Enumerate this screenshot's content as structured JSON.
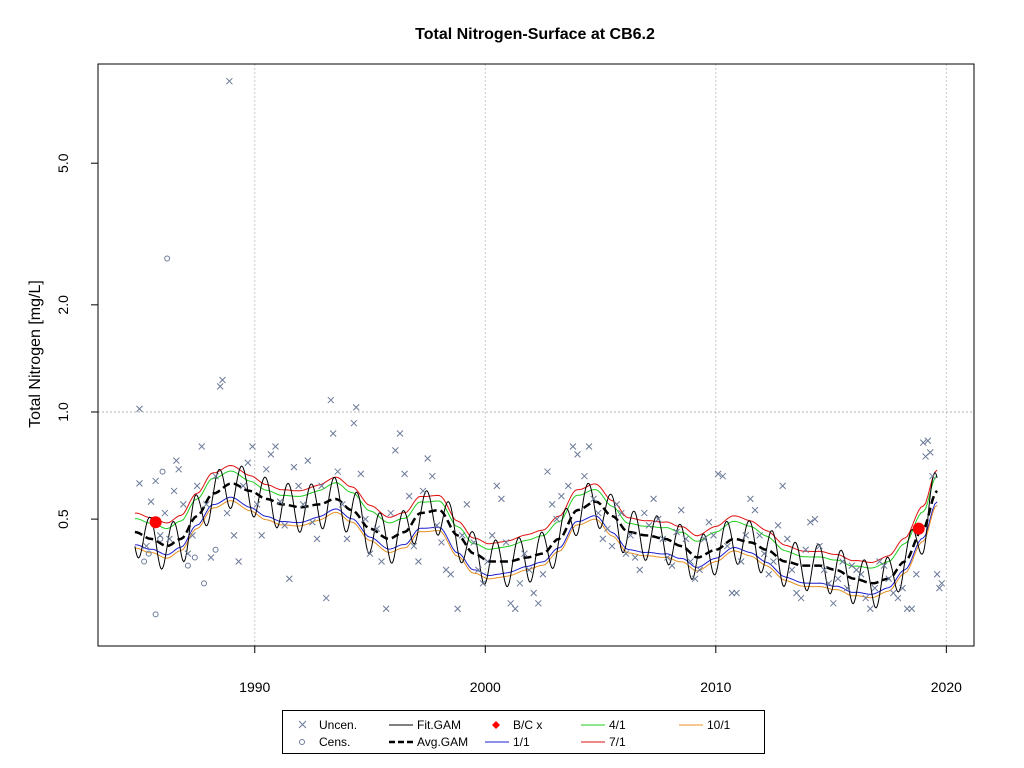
{
  "chart_data": {
    "type": "line",
    "title": "Total Nitrogen-Surface at CB6.2",
    "ylabel": "Total Nitrogen [mg/L]",
    "xlabel": "",
    "y_scale": "log",
    "xlim": [
      1983.2,
      2021.2
    ],
    "ylim": [
      0.22,
      9.5
    ],
    "x_ticks": [
      1990,
      2000,
      2010,
      2020
    ],
    "x_tick_labels": [
      "1990",
      "2000",
      "2010",
      "2020"
    ],
    "y_ticks": [
      0.5,
      1.0,
      2.0,
      5.0
    ],
    "y_tick_labels": [
      "0.5",
      "1.0",
      "2.0",
      "5.0"
    ],
    "grid": true,
    "reference_line_y": 1.0,
    "legend_placement": "bottom-outside",
    "colors": {
      "uncen": "#6b7a99",
      "cens": "#6b7a99",
      "fit": "#000000",
      "avg": "#000000",
      "bc": "#ff0000",
      "jan1": "#1f1fcf",
      "apr1": "#1fcf1f",
      "jul1": "#e01010",
      "oct1": "#e89020"
    },
    "avg_gam": {
      "x": [
        1984.8,
        1985.5,
        1986.2,
        1986.8,
        1987.5,
        1988.2,
        1989.0,
        1989.8,
        1990.5,
        1991.2,
        1992.0,
        1992.8,
        1993.5,
        1994.2,
        1995.0,
        1995.8,
        1996.5,
        1997.2,
        1998.0,
        1998.8,
        1999.5,
        2000.2,
        2001.0,
        2001.8,
        2002.5,
        2003.2,
        2004.0,
        2004.8,
        2005.5,
        2006.2,
        2007.0,
        2007.8,
        2008.5,
        2009.2,
        2010.0,
        2010.8,
        2011.5,
        2012.2,
        2013.0,
        2013.8,
        2014.5,
        2015.2,
        2016.0,
        2016.8,
        2017.5,
        2018.2,
        2019.0,
        2019.6
      ],
      "y": [
        0.46,
        0.44,
        0.42,
        0.44,
        0.51,
        0.59,
        0.63,
        0.6,
        0.57,
        0.55,
        0.54,
        0.55,
        0.57,
        0.53,
        0.47,
        0.44,
        0.46,
        0.52,
        0.53,
        0.45,
        0.4,
        0.38,
        0.38,
        0.39,
        0.4,
        0.44,
        0.53,
        0.56,
        0.51,
        0.46,
        0.45,
        0.44,
        0.42,
        0.39,
        0.41,
        0.44,
        0.43,
        0.41,
        0.38,
        0.37,
        0.37,
        0.36,
        0.34,
        0.33,
        0.34,
        0.38,
        0.47,
        0.6
      ]
    },
    "series": [
      {
        "name": "1/1",
        "offset": 0.92
      },
      {
        "name": "4/1",
        "offset": 1.09
      },
      {
        "name": "7/1",
        "offset": 1.13
      },
      {
        "name": "10/1",
        "offset": 0.9
      }
    ],
    "bc_points": [
      {
        "x": 1985.7,
        "y": 0.49
      },
      {
        "x": 2018.8,
        "y": 0.47
      }
    ],
    "uncen_points": [
      [
        1985.0,
        1.02
      ],
      [
        1985.0,
        0.63
      ],
      [
        1985.3,
        0.42
      ],
      [
        1985.5,
        0.56
      ],
      [
        1985.7,
        0.64
      ],
      [
        1985.9,
        0.45
      ],
      [
        1986.1,
        0.52
      ],
      [
        1986.3,
        0.44
      ],
      [
        1986.5,
        0.6
      ],
      [
        1986.6,
        0.73
      ],
      [
        1986.7,
        0.69
      ],
      [
        1986.9,
        0.55
      ],
      [
        1987.1,
        0.4
      ],
      [
        1987.3,
        0.45
      ],
      [
        1987.5,
        0.62
      ],
      [
        1987.7,
        0.8
      ],
      [
        1987.9,
        0.55
      ],
      [
        1988.1,
        0.39
      ],
      [
        1988.3,
        0.66
      ],
      [
        1988.5,
        1.18
      ],
      [
        1988.6,
        1.23
      ],
      [
        1988.8,
        0.52
      ],
      [
        1988.9,
        8.5
      ],
      [
        1989.1,
        0.45
      ],
      [
        1989.3,
        0.38
      ],
      [
        1989.5,
        0.62
      ],
      [
        1989.7,
        0.72
      ],
      [
        1989.9,
        0.8
      ],
      [
        1990.1,
        0.55
      ],
      [
        1990.3,
        0.45
      ],
      [
        1990.5,
        0.69
      ],
      [
        1990.7,
        0.76
      ],
      [
        1990.9,
        0.8
      ],
      [
        1991.1,
        0.56
      ],
      [
        1991.3,
        0.48
      ],
      [
        1991.5,
        0.34
      ],
      [
        1991.7,
        0.7
      ],
      [
        1991.9,
        0.62
      ],
      [
        1992.1,
        0.55
      ],
      [
        1992.3,
        0.73
      ],
      [
        1992.5,
        0.49
      ],
      [
        1992.7,
        0.44
      ],
      [
        1992.9,
        0.62
      ],
      [
        1993.1,
        0.3
      ],
      [
        1993.3,
        1.08
      ],
      [
        1993.4,
        0.87
      ],
      [
        1993.6,
        0.68
      ],
      [
        1993.8,
        0.55
      ],
      [
        1994.0,
        0.44
      ],
      [
        1994.3,
        0.93
      ],
      [
        1994.4,
        1.03
      ],
      [
        1994.6,
        0.67
      ],
      [
        1994.8,
        0.5
      ],
      [
        1995.0,
        0.4
      ],
      [
        1995.3,
        0.47
      ],
      [
        1995.5,
        0.38
      ],
      [
        1995.7,
        0.28
      ],
      [
        1995.9,
        0.52
      ],
      [
        1996.1,
        0.78
      ],
      [
        1996.3,
        0.87
      ],
      [
        1996.5,
        0.67
      ],
      [
        1996.7,
        0.58
      ],
      [
        1996.9,
        0.42
      ],
      [
        1997.1,
        0.38
      ],
      [
        1997.3,
        0.6
      ],
      [
        1997.5,
        0.74
      ],
      [
        1997.7,
        0.66
      ],
      [
        1997.9,
        0.48
      ],
      [
        1998.1,
        0.43
      ],
      [
        1998.3,
        0.36
      ],
      [
        1998.5,
        0.35
      ],
      [
        1998.8,
        0.28
      ],
      [
        1999.0,
        0.45
      ],
      [
        1999.2,
        0.55
      ],
      [
        1999.5,
        0.43
      ],
      [
        1999.7,
        0.36
      ],
      [
        1999.9,
        0.33
      ],
      [
        2000.1,
        0.38
      ],
      [
        2000.3,
        0.45
      ],
      [
        2000.5,
        0.62
      ],
      [
        2000.7,
        0.57
      ],
      [
        2000.9,
        0.43
      ],
      [
        2001.1,
        0.29
      ],
      [
        2001.3,
        0.28
      ],
      [
        2001.5,
        0.33
      ],
      [
        2001.7,
        0.4
      ],
      [
        2001.9,
        0.36
      ],
      [
        2002.1,
        0.31
      ],
      [
        2002.3,
        0.29
      ],
      [
        2002.5,
        0.35
      ],
      [
        2002.7,
        0.68
      ],
      [
        2002.9,
        0.55
      ],
      [
        2003.1,
        0.5
      ],
      [
        2003.3,
        0.58
      ],
      [
        2003.6,
        0.62
      ],
      [
        2003.8,
        0.8
      ],
      [
        2004.0,
        0.76
      ],
      [
        2004.3,
        0.66
      ],
      [
        2004.5,
        0.8
      ],
      [
        2004.7,
        0.57
      ],
      [
        2004.9,
        0.52
      ],
      [
        2005.1,
        0.44
      ],
      [
        2005.3,
        0.47
      ],
      [
        2005.5,
        0.42
      ],
      [
        2005.7,
        0.55
      ],
      [
        2005.9,
        0.52
      ],
      [
        2006.1,
        0.4
      ],
      [
        2006.3,
        0.45
      ],
      [
        2006.5,
        0.39
      ],
      [
        2006.7,
        0.36
      ],
      [
        2006.9,
        0.52
      ],
      [
        2007.1,
        0.48
      ],
      [
        2007.3,
        0.57
      ],
      [
        2007.5,
        0.5
      ],
      [
        2007.7,
        0.44
      ],
      [
        2007.9,
        0.39
      ],
      [
        2008.1,
        0.37
      ],
      [
        2008.3,
        0.46
      ],
      [
        2008.5,
        0.53
      ],
      [
        2008.7,
        0.44
      ],
      [
        2008.9,
        0.38
      ],
      [
        2009.1,
        0.34
      ],
      [
        2009.3,
        0.36
      ],
      [
        2009.5,
        0.44
      ],
      [
        2009.7,
        0.49
      ],
      [
        2009.9,
        0.45
      ],
      [
        2010.1,
        0.67
      ],
      [
        2010.3,
        0.66
      ],
      [
        2010.5,
        0.42
      ],
      [
        2010.7,
        0.31
      ],
      [
        2010.9,
        0.31
      ],
      [
        2011.1,
        0.38
      ],
      [
        2011.3,
        0.45
      ],
      [
        2011.5,
        0.57
      ],
      [
        2011.7,
        0.53
      ],
      [
        2011.9,
        0.45
      ],
      [
        2012.1,
        0.4
      ],
      [
        2012.3,
        0.35
      ],
      [
        2012.5,
        0.38
      ],
      [
        2012.7,
        0.48
      ],
      [
        2012.9,
        0.62
      ],
      [
        2013.1,
        0.44
      ],
      [
        2013.3,
        0.36
      ],
      [
        2013.5,
        0.31
      ],
      [
        2013.7,
        0.3
      ],
      [
        2013.9,
        0.41
      ],
      [
        2014.1,
        0.49
      ],
      [
        2014.3,
        0.5
      ],
      [
        2014.5,
        0.42
      ],
      [
        2014.7,
        0.36
      ],
      [
        2014.9,
        0.33
      ],
      [
        2015.1,
        0.29
      ],
      [
        2015.3,
        0.34
      ],
      [
        2015.5,
        0.38
      ],
      [
        2015.7,
        0.32
      ],
      [
        2015.9,
        0.37
      ],
      [
        2016.1,
        0.36
      ],
      [
        2016.3,
        0.35
      ],
      [
        2016.5,
        0.3
      ],
      [
        2016.7,
        0.28
      ],
      [
        2016.9,
        0.32
      ],
      [
        2017.1,
        0.38
      ],
      [
        2017.3,
        0.37
      ],
      [
        2017.5,
        0.34
      ],
      [
        2017.7,
        0.31
      ],
      [
        2017.9,
        0.3
      ],
      [
        2018.1,
        0.32
      ],
      [
        2018.3,
        0.28
      ],
      [
        2018.5,
        0.28
      ],
      [
        2018.7,
        0.35
      ],
      [
        2018.9,
        0.47
      ],
      [
        2019.0,
        0.82
      ],
      [
        2019.1,
        0.75
      ],
      [
        2019.2,
        0.83
      ],
      [
        2019.3,
        0.77
      ],
      [
        2019.4,
        0.66
      ],
      [
        2019.6,
        0.35
      ],
      [
        2019.7,
        0.32
      ],
      [
        2019.8,
        0.33
      ]
    ],
    "cens_points": [
      [
        1985.2,
        0.38
      ],
      [
        1985.4,
        0.4
      ],
      [
        1985.7,
        0.27
      ],
      [
        1985.9,
        0.44
      ],
      [
        1986.0,
        0.68
      ],
      [
        1986.2,
        2.7
      ],
      [
        1987.1,
        0.37
      ],
      [
        1987.4,
        0.39
      ],
      [
        1987.8,
        0.33
      ],
      [
        1988.3,
        0.41
      ]
    ]
  },
  "legend": {
    "uncen": "Uncen.",
    "cens": "Cens.",
    "fit": "Fit.GAM",
    "avg": "Avg.GAM",
    "bc": "B/C x",
    "jan1": "1/1",
    "apr1": "4/1",
    "jul1": "7/1",
    "oct1": "10/1"
  }
}
